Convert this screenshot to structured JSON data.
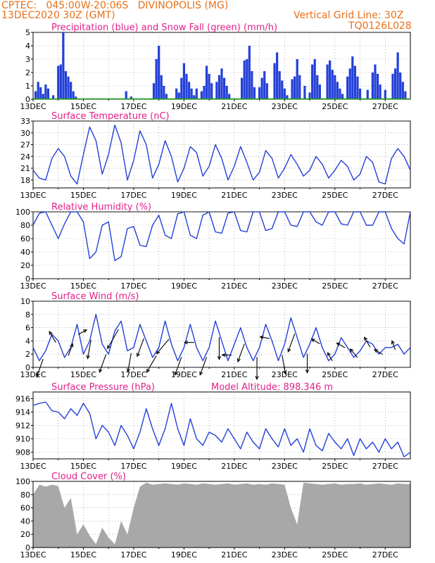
{
  "header": {
    "line1_left": "CPTEC:   045:00W-20:06S   DIVINOPOLIS (MG)",
    "line2_left": "13DEC2020 30Z (GMT)",
    "line1_right": "Vertical Grid Line: 30Z",
    "line2_right": "TQ0126L028"
  },
  "x_ticks": [
    "13DEC",
    "15DEC",
    "17DEC",
    "19DEC",
    "21DEC",
    "23DEC",
    "25DEC",
    "27DEC"
  ],
  "colors": {
    "accent": "#e8701a",
    "title": "#e0208a",
    "line": "#2440d8",
    "cloud": "#a8a8a8",
    "snow": "#18a018",
    "arrow": "#000000"
  },
  "chart_data": [
    {
      "type": "bar",
      "title": "Precipitation (blue) and Snow Fall (green) (mm/h)",
      "ylim": [
        0,
        5
      ],
      "yticks": [
        "0",
        "1",
        "2",
        "3",
        "4",
        "5"
      ],
      "xlim": [
        0,
        15
      ],
      "series": [
        {
          "name": "Precipitation",
          "color": "#2440d8",
          "x": [
            0.1,
            0.2,
            0.3,
            0.4,
            0.5,
            0.6,
            0.8,
            1.0,
            1.1,
            1.2,
            1.3,
            1.4,
            1.5,
            1.6,
            1.7,
            3.7,
            3.9,
            4.8,
            4.9,
            5.0,
            5.1,
            5.2,
            5.3,
            5.7,
            5.8,
            5.9,
            6.0,
            6.1,
            6.2,
            6.3,
            6.4,
            6.5,
            6.7,
            6.8,
            6.9,
            7.0,
            7.1,
            7.3,
            7.4,
            7.5,
            7.6,
            7.7,
            7.8,
            8.3,
            8.4,
            8.5,
            8.6,
            8.7,
            8.8,
            9.0,
            9.1,
            9.2,
            9.3,
            9.6,
            9.7,
            9.8,
            9.9,
            10.0,
            10.1,
            10.3,
            10.4,
            10.5,
            10.6,
            10.8,
            11.0,
            11.1,
            11.2,
            11.3,
            11.4,
            11.7,
            11.8,
            11.9,
            12.0,
            12.1,
            12.2,
            12.3,
            12.5,
            12.6,
            12.7,
            12.8,
            12.9,
            13.0,
            13.3,
            13.5,
            13.6,
            13.7,
            13.8,
            14.0,
            14.3,
            14.4,
            14.5,
            14.6,
            14.7,
            14.8
          ],
          "values": [
            0.6,
            1.3,
            0.9,
            0.4,
            1.1,
            0.8,
            0.3,
            2.5,
            2.6,
            5.0,
            2.1,
            1.7,
            1.3,
            0.6,
            0.2,
            0.6,
            0.2,
            1.2,
            3.0,
            4.0,
            1.8,
            1.0,
            0.4,
            0.8,
            0.5,
            1.6,
            2.7,
            1.9,
            1.3,
            0.8,
            0.3,
            0.8,
            0.6,
            1.0,
            2.5,
            1.9,
            1.2,
            1.3,
            1.8,
            2.3,
            1.6,
            1.0,
            0.4,
            1.6,
            2.9,
            3.0,
            4.0,
            2.1,
            0.9,
            0.9,
            1.6,
            2.1,
            1.2,
            2.7,
            3.5,
            2.1,
            1.4,
            0.8,
            0.3,
            1.5,
            1.7,
            3.0,
            1.8,
            1.0,
            0.5,
            2.6,
            3.0,
            1.8,
            1.1,
            2.6,
            2.9,
            2.2,
            1.8,
            1.3,
            0.8,
            0.4,
            1.7,
            2.3,
            3.2,
            2.5,
            1.7,
            0.8,
            0.7,
            2.0,
            2.6,
            1.9,
            1.1,
            0.7,
            1.9,
            2.3,
            3.5,
            2.0,
            1.3,
            0.6
          ]
        },
        {
          "name": "Snow Fall",
          "color": "#18a018",
          "values": [
            0
          ]
        }
      ]
    },
    {
      "type": "line",
      "title": "Surface Temperature (nC)",
      "ylim": [
        16,
        33
      ],
      "yticks": [
        "18",
        "21",
        "24",
        "27",
        "30",
        "33"
      ],
      "xlim": [
        0,
        15
      ],
      "x": [
        0,
        0.25,
        0.5,
        0.75,
        1.0,
        1.25,
        1.5,
        1.75,
        2.0,
        2.25,
        2.5,
        2.75,
        3.0,
        3.25,
        3.5,
        3.75,
        4.0,
        4.25,
        4.5,
        4.75,
        5.0,
        5.25,
        5.5,
        5.75,
        6.0,
        6.25,
        6.5,
        6.75,
        7.0,
        7.25,
        7.5,
        7.75,
        8.0,
        8.25,
        8.5,
        8.75,
        9.0,
        9.25,
        9.5,
        9.75,
        10.0,
        10.25,
        10.5,
        10.75,
        11.0,
        11.25,
        11.5,
        11.75,
        12.0,
        12.25,
        12.5,
        12.75,
        13.0,
        13.25,
        13.5,
        13.75,
        14.0,
        14.25,
        14.5,
        14.75,
        15.0
      ],
      "values": [
        20.5,
        18.5,
        18.0,
        23.5,
        26.0,
        24.0,
        19.0,
        17.0,
        24.5,
        31.5,
        28.0,
        19.5,
        24.5,
        32.0,
        27.5,
        18.0,
        23.0,
        30.5,
        27.0,
        18.5,
        22.0,
        28.0,
        24.0,
        17.5,
        21.0,
        26.5,
        25.0,
        19.0,
        21.5,
        27.0,
        23.5,
        18.0,
        21.5,
        26.5,
        22.5,
        18.0,
        20.0,
        25.5,
        23.5,
        18.5,
        21.0,
        24.5,
        22.0,
        19.0,
        20.5,
        24.0,
        22.0,
        18.5,
        20.5,
        23.0,
        21.5,
        18.0,
        19.5,
        24.0,
        22.5,
        17.5,
        17.0,
        23.5,
        26.0,
        24.0,
        20.5
      ]
    },
    {
      "type": "line",
      "title": "Relative Humidity (%)",
      "ylim": [
        0,
        100
      ],
      "yticks": [
        "0",
        "20",
        "40",
        "60",
        "80",
        "100"
      ],
      "xlim": [
        0,
        15
      ],
      "x": [
        0,
        0.25,
        0.5,
        0.75,
        1.0,
        1.25,
        1.5,
        1.75,
        2.0,
        2.25,
        2.5,
        2.75,
        3.0,
        3.25,
        3.5,
        3.75,
        4.0,
        4.25,
        4.5,
        4.75,
        5.0,
        5.25,
        5.5,
        5.75,
        6.0,
        6.25,
        6.5,
        6.75,
        7.0,
        7.25,
        7.5,
        7.75,
        8.0,
        8.25,
        8.5,
        8.75,
        9.0,
        9.25,
        9.5,
        9.75,
        10.0,
        10.25,
        10.5,
        10.75,
        11.0,
        11.25,
        11.5,
        11.75,
        12.0,
        12.25,
        12.5,
        12.75,
        13.0,
        13.25,
        13.5,
        13.75,
        14.0,
        14.25,
        14.5,
        14.75,
        15.0
      ],
      "values": [
        80,
        98,
        100,
        80,
        60,
        82,
        100,
        100,
        85,
        30,
        40,
        80,
        85,
        27,
        33,
        75,
        78,
        50,
        48,
        80,
        95,
        65,
        60,
        97,
        100,
        65,
        60,
        95,
        100,
        70,
        68,
        98,
        100,
        72,
        70,
        100,
        100,
        72,
        75,
        100,
        100,
        80,
        78,
        100,
        100,
        85,
        80,
        100,
        100,
        82,
        80,
        100,
        100,
        80,
        80,
        100,
        100,
        75,
        60,
        52,
        100
      ]
    },
    {
      "type": "line",
      "title": "Surface Wind (m/s)",
      "ylim": [
        0,
        10
      ],
      "yticks": [
        "0",
        "2",
        "4",
        "6",
        "8",
        "10"
      ],
      "xlim": [
        0,
        15
      ],
      "x": [
        0,
        0.25,
        0.5,
        0.75,
        1.0,
        1.25,
        1.5,
        1.75,
        2.0,
        2.25,
        2.5,
        2.75,
        3.0,
        3.25,
        3.5,
        3.75,
        4.0,
        4.25,
        4.5,
        4.75,
        5.0,
        5.25,
        5.5,
        5.75,
        6.0,
        6.25,
        6.5,
        6.75,
        7.0,
        7.25,
        7.5,
        7.75,
        8.0,
        8.25,
        8.5,
        8.75,
        9.0,
        9.25,
        9.5,
        9.75,
        10.0,
        10.25,
        10.5,
        10.75,
        11.0,
        11.25,
        11.5,
        11.75,
        12.0,
        12.25,
        12.5,
        12.75,
        13.0,
        13.25,
        13.5,
        13.75,
        14.0,
        14.25,
        14.5,
        14.75,
        15.0
      ],
      "values": [
        3.0,
        1.0,
        2.5,
        5.0,
        4.0,
        1.5,
        3.0,
        6.5,
        2.0,
        4.0,
        8.0,
        3.5,
        2.0,
        5.5,
        7.0,
        2.5,
        3.0,
        6.5,
        4.0,
        1.5,
        3.0,
        7.0,
        3.5,
        1.0,
        3.0,
        6.5,
        3.0,
        1.0,
        3.0,
        7.0,
        4.0,
        1.0,
        3.5,
        6.0,
        3.0,
        1.0,
        3.0,
        6.5,
        4.0,
        1.0,
        3.5,
        7.5,
        4.5,
        1.5,
        3.5,
        6.0,
        3.0,
        1.0,
        2.0,
        4.5,
        3.0,
        1.5,
        2.5,
        4.0,
        3.5,
        2.0,
        3.0,
        3.0,
        3.5,
        2.0,
        3.0
      ],
      "arrows": {
        "x": [
          0.4,
          0.9,
          1.4,
          1.8,
          2.3,
          2.9,
          3.4,
          3.9,
          4.4,
          4.9,
          5.4,
          5.9,
          6.4,
          6.9,
          7.4,
          7.9,
          8.4,
          8.9,
          9.4,
          9.9,
          10.4,
          10.9,
          11.4,
          11.9,
          12.4,
          12.9,
          13.4,
          13.9,
          14.4
        ],
        "dir_deg": [
          200,
          330,
          20,
          60,
          190,
          200,
          210,
          190,
          200,
          210,
          220,
          200,
          270,
          200,
          180,
          270,
          200,
          180,
          280,
          170,
          200,
          180,
          300,
          330,
          300,
          320,
          330,
          300,
          340
        ],
        "speed": [
          3,
          2,
          2,
          1.5,
          3,
          3,
          3.5,
          3,
          3,
          3,
          3,
          3,
          1.5,
          3,
          3.5,
          1.5,
          3,
          3.5,
          1.5,
          3,
          3,
          3,
          1.5,
          1.5,
          1.5,
          1.8,
          1.8,
          1.5,
          1.5
        ]
      }
    },
    {
      "type": "line",
      "title": "Surface Pressure (hPa)",
      "subtitle": "Model Altitude: 898.346 m",
      "ylim": [
        907,
        917
      ],
      "yticks": [
        "908",
        "910",
        "912",
        "914",
        "916"
      ],
      "xlim": [
        0,
        15
      ],
      "x": [
        0,
        0.25,
        0.5,
        0.75,
        1.0,
        1.25,
        1.5,
        1.75,
        2.0,
        2.25,
        2.5,
        2.75,
        3.0,
        3.25,
        3.5,
        3.75,
        4.0,
        4.25,
        4.5,
        4.75,
        5.0,
        5.25,
        5.5,
        5.75,
        6.0,
        6.25,
        6.5,
        6.75,
        7.0,
        7.25,
        7.5,
        7.75,
        8.0,
        8.25,
        8.5,
        8.75,
        9.0,
        9.25,
        9.5,
        9.75,
        10.0,
        10.25,
        10.5,
        10.75,
        11.0,
        11.25,
        11.5,
        11.75,
        12.0,
        12.25,
        12.5,
        12.75,
        13.0,
        13.25,
        13.5,
        13.75,
        14.0,
        14.25,
        14.5,
        14.75,
        15.0
      ],
      "values": [
        915.0,
        915.3,
        915.5,
        914.2,
        914.0,
        913.0,
        914.5,
        913.5,
        915.3,
        913.8,
        910.0,
        912.0,
        911.0,
        909.0,
        912.0,
        910.5,
        908.5,
        911.0,
        914.5,
        911.5,
        909.0,
        911.5,
        915.3,
        911.5,
        909.0,
        913.0,
        910.0,
        909.0,
        911.0,
        910.5,
        909.5,
        911.5,
        910.0,
        908.5,
        911.0,
        909.5,
        908.5,
        911.5,
        910.0,
        908.8,
        911.5,
        909.0,
        910.0,
        908.0,
        911.5,
        909.0,
        908.2,
        910.8,
        909.5,
        908.5,
        910.0,
        907.5,
        910.0,
        908.5,
        909.5,
        908.0,
        910.0,
        908.5,
        909.5,
        907.3,
        908.0
      ]
    },
    {
      "type": "area",
      "title": "Cloud Cover (%)",
      "ylim": [
        0,
        100
      ],
      "yticks": [
        "0",
        "20",
        "40",
        "60",
        "80",
        "100"
      ],
      "xlim": [
        0,
        15
      ],
      "x": [
        0,
        0.25,
        0.5,
        0.75,
        1.0,
        1.25,
        1.5,
        1.75,
        2.0,
        2.25,
        2.5,
        2.75,
        3.0,
        3.25,
        3.5,
        3.75,
        4.0,
        4.25,
        4.5,
        4.75,
        5.0,
        5.25,
        5.5,
        5.75,
        6.0,
        6.25,
        6.5,
        6.75,
        7.0,
        7.25,
        7.5,
        7.75,
        8.0,
        8.25,
        8.5,
        8.75,
        9.0,
        9.25,
        9.5,
        9.75,
        10.0,
        10.25,
        10.5,
        10.75,
        11.0,
        11.25,
        11.5,
        11.75,
        12.0,
        12.25,
        12.5,
        12.75,
        13.0,
        13.25,
        13.5,
        13.75,
        14.0,
        14.25,
        14.5,
        14.75,
        15.0
      ],
      "values": [
        80,
        95,
        92,
        95,
        93,
        60,
        75,
        20,
        35,
        18,
        5,
        30,
        15,
        5,
        40,
        20,
        60,
        92,
        98,
        95,
        96,
        97,
        96,
        95,
        97,
        96,
        95,
        97,
        96,
        95,
        96,
        97,
        95,
        96,
        97,
        95,
        96,
        95,
        97,
        96,
        95,
        60,
        35,
        98,
        97,
        96,
        95,
        96,
        97,
        95,
        96,
        96,
        97,
        95,
        96,
        97,
        96,
        95,
        97,
        96,
        96
      ]
    }
  ]
}
